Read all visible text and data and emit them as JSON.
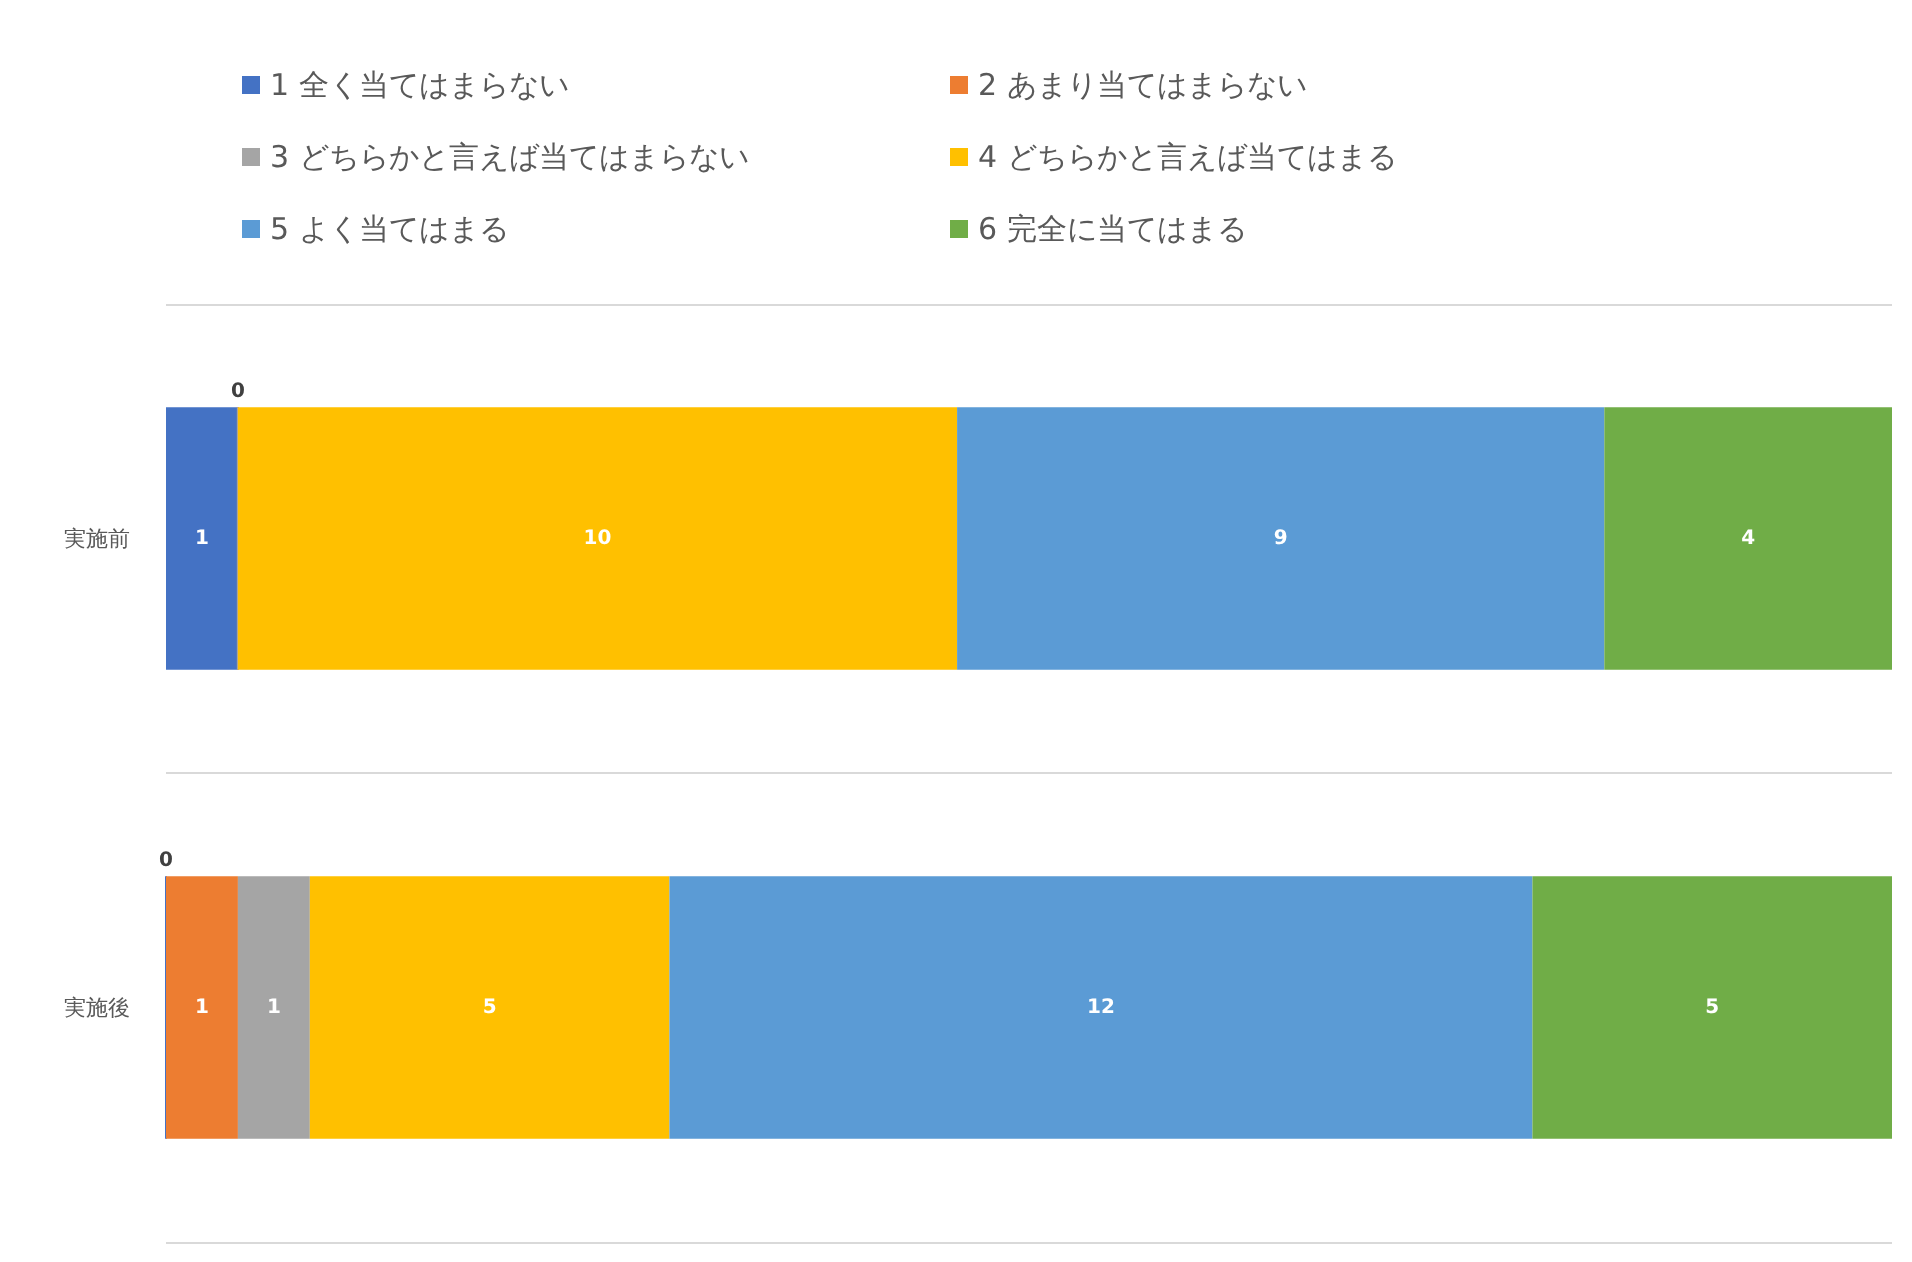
{
  "chart_data": {
    "type": "bar",
    "orientation": "horizontal",
    "stacked": true,
    "categories": [
      "実施前",
      "実施後"
    ],
    "xlim": [
      0,
      24
    ],
    "tick_labels": "y",
    "grid": "y",
    "legend": "top",
    "series": [
      {
        "name": "1 全く当てはまらない",
        "color": "#4472c4",
        "values": [
          1,
          0
        ],
        "value_labels": [
          "1",
          "0"
        ]
      },
      {
        "name": "2 あまり当てはまらない",
        "color": "#ed7d31",
        "values": [
          0,
          1
        ],
        "value_labels": [
          "0",
          "1"
        ]
      },
      {
        "name": "3 どちらかと言えば当てはまらない",
        "color": "#a5a5a5",
        "values": [
          0,
          1
        ],
        "value_labels": [
          null,
          "1"
        ]
      },
      {
        "name": "4 どちらかと言えば当てはまる",
        "color": "#ffc000",
        "values": [
          10,
          5
        ],
        "value_labels": [
          "10",
          "5"
        ]
      },
      {
        "name": "5 よく当てはまる",
        "color": "#5b9bd5",
        "values": [
          9,
          12
        ],
        "value_labels": [
          "9",
          "12"
        ]
      },
      {
        "name": "6 完全に当てはまる",
        "color": "#70ad47",
        "values": [
          4,
          5
        ],
        "value_labels": [
          "4",
          "5"
        ]
      }
    ]
  }
}
